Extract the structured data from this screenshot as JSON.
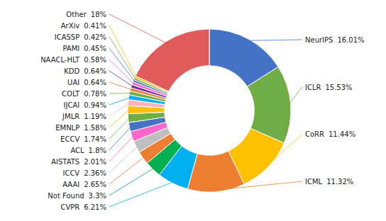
{
  "chart_data": {
    "type": "donut",
    "categories": [
      "NeurIPS",
      "ICLR",
      "CoRR",
      "ICML",
      "CVPR",
      "Not Found",
      "AAAI",
      "ICCV",
      "AISTATS",
      "ACL",
      "ECCV",
      "EMNLP",
      "JMLR",
      "IJCAI",
      "COLT",
      "UAI",
      "KDD",
      "NAACL-HLT",
      "PAMI",
      "ICASSP",
      "ArXiv",
      "Other"
    ],
    "values": [
      16.01,
      15.53,
      11.44,
      11.32,
      6.21,
      3.3,
      2.65,
      2.36,
      2.01,
      1.8,
      1.74,
      1.58,
      1.19,
      0.94,
      0.78,
      0.64,
      0.64,
      0.58,
      0.45,
      0.42,
      0.41,
      18.0
    ],
    "value_labels": [
      "16.01%",
      "15.53%",
      "11.44%",
      "11.32%",
      "6.21%",
      "3.3%",
      "2.65%",
      "2.36%",
      "2.01%",
      "1.8%",
      "1.74%",
      "1.58%",
      "1.19%",
      "0.94%",
      "0.78%",
      "0.64%",
      "0.64%",
      "0.58%",
      "0.45%",
      "0.42%",
      "0.41%",
      "18%"
    ],
    "colors": [
      "#4472c4",
      "#70ad47",
      "#ffc000",
      "#ed7d31",
      "#00b0f0",
      "#00b050",
      "#ed7d31",
      "#bfbfbf",
      "#ff66cc",
      "#4472c4",
      "#70ad47",
      "#ffc000",
      "#ffb3ba",
      "#00b0f0",
      "#70ad47",
      "#ed7d31",
      "#7030a0",
      "#ff66cc",
      "#4472c4",
      "#70ad47",
      "#ffc000",
      "#e05c5c"
    ],
    "data_labels": true
  }
}
